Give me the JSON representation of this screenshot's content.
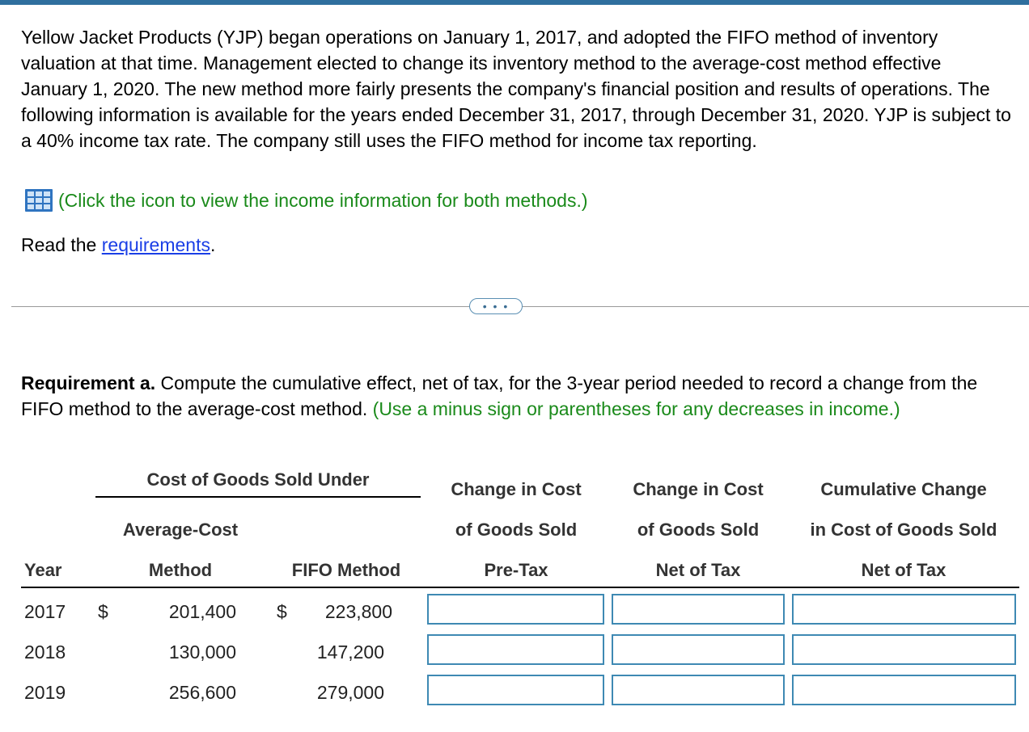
{
  "intro": {
    "paragraph": "Yellow Jacket Products (YJP) began operations on January 1, 2017, and adopted the FIFO method of inventory valuation at that time. Management elected to change its inventory method to the average-cost method effective January 1, 2020. The new method more fairly presents the company's financial position and results of operations. The following information is available for the years ended December 31, 2017, through December 31, 2020. YJP is subject to a 40% income tax rate. The company still uses the FIFO method for income tax reporting.",
    "click_text": "(Click the icon to view the income information for both methods.)",
    "icon": "table-grid-icon",
    "read_prefix": "Read the ",
    "read_link": "requirements",
    "read_suffix": "."
  },
  "divider": {
    "button_label": "• • •"
  },
  "requirement": {
    "label": "Requirement a.",
    "text": " Compute the cumulative effect, net of tax, for the 3-year period needed to record a change from the FIFO method to the average-cost method.",
    "hint": " (Use a minus sign or parentheses for any decreases in income.)"
  },
  "table": {
    "group_header": "Cost of Goods Sold Under",
    "headers": {
      "year": "Year",
      "avg_1": "Average-Cost",
      "avg_2": "Method",
      "fifo": "FIFO Method",
      "pretax_1": "Change in Cost",
      "pretax_2": "of Goods Sold",
      "pretax_3": "Pre-Tax",
      "net_1": "Change in Cost",
      "net_2": "of Goods Sold",
      "net_3": "Net of Tax",
      "cum_1": "Cumulative Change",
      "cum_2": "in Cost of Goods Sold",
      "cum_3": "Net of Tax"
    },
    "currency": "$",
    "rows": [
      {
        "year": "2017",
        "avg": "201,400",
        "fifo": "223,800",
        "pretax": "",
        "net": "",
        "cumulative": ""
      },
      {
        "year": "2018",
        "avg": "130,000",
        "fifo": "147,200",
        "pretax": "",
        "net": "",
        "cumulative": ""
      },
      {
        "year": "2019",
        "avg": "256,600",
        "fifo": "279,000",
        "pretax": "",
        "net": "",
        "cumulative": ""
      }
    ]
  },
  "colors": {
    "accent_green": "#1a8a1a",
    "link_blue": "#1a3ee6",
    "input_border": "#3e89b3",
    "top_bar": "#2f6f9e"
  }
}
